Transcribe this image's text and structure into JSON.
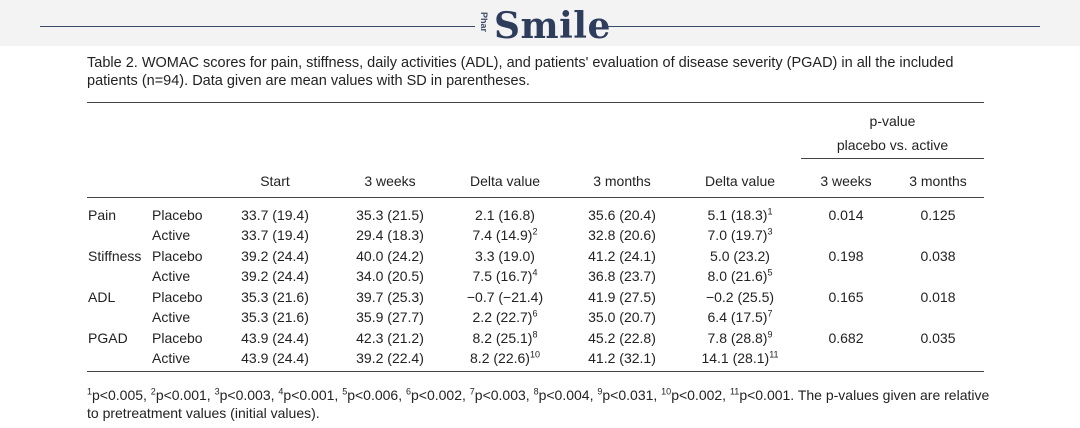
{
  "header": {
    "logo_text": "Smile",
    "logo_side_text": "Phar"
  },
  "caption": "Table 2. WOMAC scores for pain, stiffness, daily activities (ADL), and patients' evaluation of disease severity (PGAD) in all the included patients (n=94). Data given are mean values with SD in parentheses.",
  "table": {
    "pvalue_header": [
      "p-value",
      "placebo vs. active"
    ],
    "columns": [
      "Start",
      "3 weeks",
      "Delta value",
      "3 months",
      "Delta value",
      "3 weeks",
      "3 months"
    ],
    "rows": [
      {
        "category": "Pain",
        "group": "Placebo",
        "start": "33.7 (19.4)",
        "w3": "35.3 (21.5)",
        "delta1": "2.1 (16.8)",
        "delta1_sup": "",
        "m3": "35.6 (20.4)",
        "delta2": "5.1 (18.3)",
        "delta2_sup": "1",
        "p_w3": "0.014",
        "p_m3": "0.125"
      },
      {
        "category": "",
        "group": "Active",
        "start": "33.7 (19.4)",
        "w3": "29.4 (18.3)",
        "delta1": "7.4 (14.9)",
        "delta1_sup": "2",
        "m3": "32.8 (20.6)",
        "delta2": "7.0 (19.7)",
        "delta2_sup": "3",
        "p_w3": "",
        "p_m3": ""
      },
      {
        "category": "Stiffness",
        "group": "Placebo",
        "start": "39.2 (24.4)",
        "w3": "40.0 (24.2)",
        "delta1": "3.3 (19.0)",
        "delta1_sup": "",
        "m3": "41.2 (24.1)",
        "delta2": "5.0 (23.2)",
        "delta2_sup": "",
        "p_w3": "0.198",
        "p_m3": "0.038"
      },
      {
        "category": "",
        "group": "Active",
        "start": "39.2 (24.4)",
        "w3": "34.0 (20.5)",
        "delta1": "7.5 (16.7)",
        "delta1_sup": "4",
        "m3": "36.8 (23.7)",
        "delta2": "8.0 (21.6)",
        "delta2_sup": "5",
        "p_w3": "",
        "p_m3": ""
      },
      {
        "category": "ADL",
        "group": "Placebo",
        "start": "35.3 (21.6)",
        "w3": "39.7 (25.3)",
        "delta1": "−0.7 (−21.4)",
        "delta1_sup": "",
        "m3": "41.9 (27.5)",
        "delta2": "−0.2 (25.5)",
        "delta2_sup": "",
        "p_w3": "0.165",
        "p_m3": "0.018"
      },
      {
        "category": "",
        "group": "Active",
        "start": "35.3 (21.6)",
        "w3": "35.9 (27.7)",
        "delta1": "2.2 (22.7)",
        "delta1_sup": "6",
        "m3": "35.0 (20.7)",
        "delta2": "6.4 (17.5)",
        "delta2_sup": "7",
        "p_w3": "",
        "p_m3": ""
      },
      {
        "category": "PGAD",
        "group": "Placebo",
        "start": "43.9 (24.4)",
        "w3": "42.3 (21.2)",
        "delta1": "8.2 (25.1)",
        "delta1_sup": "8",
        "m3": "45.2 (22.8)",
        "delta2": "7.8 (28.8)",
        "delta2_sup": "9",
        "p_w3": "0.682",
        "p_m3": "0.035"
      },
      {
        "category": "",
        "group": "Active",
        "start": "43.9 (24.4)",
        "w3": "39.2 (22.4)",
        "delta1": "8.2 (22.6)",
        "delta1_sup": "10",
        "m3": "41.2 (32.1)",
        "delta2": "14.1 (28.1)",
        "delta2_sup": "11",
        "p_w3": "",
        "p_m3": ""
      }
    ]
  },
  "footnote": {
    "items": [
      {
        "sup": "1",
        "text": "p<0.005,"
      },
      {
        "sup": "2",
        "text": "p<0.001,"
      },
      {
        "sup": "3",
        "text": "p<0.003,"
      },
      {
        "sup": "4",
        "text": "p<0.001,"
      },
      {
        "sup": "5",
        "text": "p<0.006,"
      },
      {
        "sup": "6",
        "text": "p<0.002,"
      },
      {
        "sup": "7",
        "text": "p<0.003,"
      },
      {
        "sup": "8",
        "text": "p<0.004,"
      },
      {
        "sup": "9",
        "text": "p<0.031,"
      },
      {
        "sup": "10",
        "text": "p<0.002,"
      },
      {
        "sup": "11",
        "text": "p<0.001."
      }
    ],
    "trailing": "The p-values given are relative to pretreatment values (initial values)."
  }
}
